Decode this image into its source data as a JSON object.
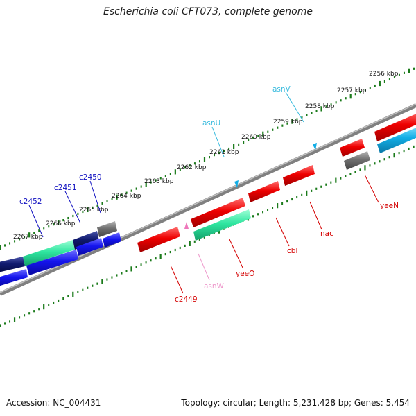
{
  "title": "Escherichia coli CFT073, complete genome",
  "accession": "Accession: NC_004431",
  "summary": "Topology: circular; Length: 5,231,428 bp; Genes: 5,454",
  "colors": {
    "backbone": "#808080",
    "ticks": "#1a7a1a",
    "red": "#ee0000",
    "green": "#2fe6a0",
    "navy": "#101a6e",
    "blue": "#1515ee",
    "gray": "#707070",
    "cyan": "#13aee6",
    "label_red": "#d40000",
    "label_navy": "#1010c0",
    "label_cyan": "#33b9dd",
    "label_pink": "#ee99cc"
  },
  "kbp_labels": [
    "2256 kbp",
    "2257 kbp",
    "2258 kbp",
    "2259 kbp",
    "2260 kbp",
    "2261 kbp",
    "2262 kbp",
    "2263 kbp",
    "2264 kbp",
    "2265 kbp",
    "2266 kbp",
    "2267 kbp"
  ],
  "gene_labels": {
    "asnV": "asnV",
    "asnU": "asnU",
    "c2450": "c2450",
    "c2451": "c2451",
    "c2452": "c2452",
    "yeeN": "yeeN",
    "nac": "nac",
    "cbl": "cbl",
    "yeeO": "yeeO",
    "asnW": "asnW",
    "c2449": "c2449"
  }
}
